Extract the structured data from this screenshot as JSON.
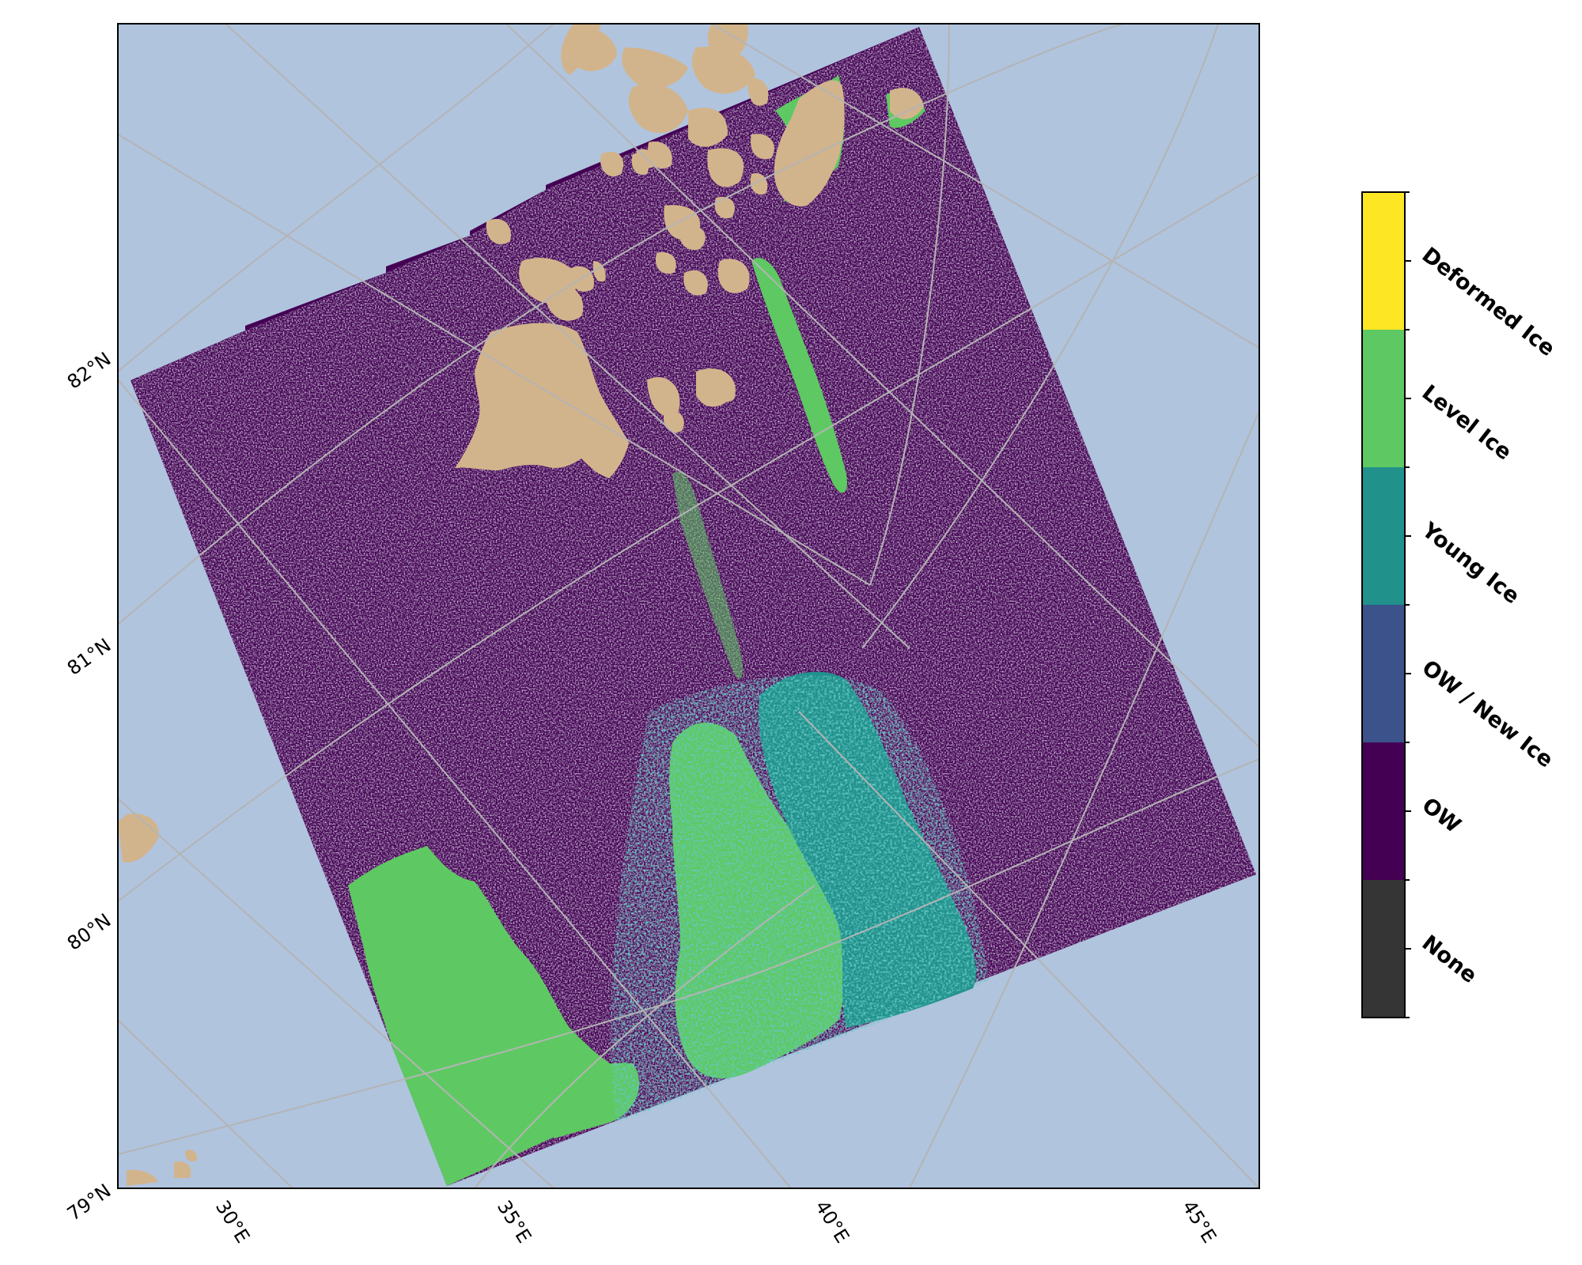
{
  "map": {
    "background_color": "#b0c4de",
    "land_color": "#d2b48c",
    "gridline_color": "#b4b4b4",
    "lat_labels": [
      "79°N",
      "80°N",
      "81°N",
      "82°N"
    ],
    "lon_labels": [
      "30°E",
      "35°E",
      "40°E",
      "45°E"
    ]
  },
  "legend": {
    "classes": [
      {
        "label": "Deformed Ice",
        "color": "#fde725"
      },
      {
        "label": "Level Ice",
        "color": "#5ec962"
      },
      {
        "label": "Young Ice",
        "color": "#21918c"
      },
      {
        "label": "OW / New Ice",
        "color": "#3b528b"
      },
      {
        "label": "OW",
        "color": "#440154"
      },
      {
        "label": "None",
        "color": "#353535"
      }
    ]
  }
}
